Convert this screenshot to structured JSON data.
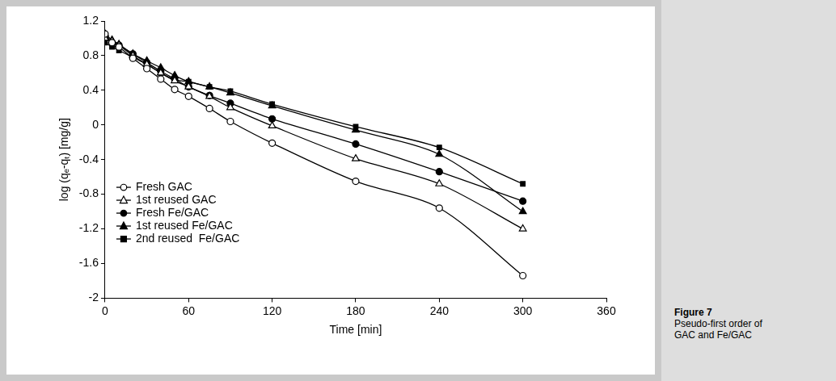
{
  "chart_data": {
    "type": "line",
    "title": "Figure 7",
    "subtitle": "Pseudo-first order of GAC and Fe/GAC",
    "x_label": "Time [min]",
    "y_label": "log (qₑ-qₜ) [mg/g]",
    "x": [
      0,
      5,
      10,
      20,
      30,
      40,
      50,
      60,
      75,
      90,
      120,
      180,
      240,
      300
    ],
    "series": [
      {
        "name": "Fresh GAC",
        "color": "#000000",
        "marker": "circle_open",
        "values": [
          1.05,
          0.95,
          0.9,
          0.77,
          0.65,
          0.53,
          0.41,
          0.33,
          0.19,
          0.04,
          -0.21,
          -0.65,
          -0.96,
          -1.74
        ]
      },
      {
        "name": "1st reused GAC",
        "color": "#000000",
        "marker": "triangle_open",
        "values": [
          1.0,
          0.97,
          0.92,
          0.8,
          0.7,
          0.6,
          0.51,
          0.44,
          0.33,
          0.2,
          -0.01,
          -0.39,
          -0.68,
          -1.2
        ]
      },
      {
        "name": "Fresh Fe/GAC",
        "color": "#000000",
        "marker": "circle",
        "values": [
          1.0,
          0.95,
          0.92,
          0.82,
          0.72,
          0.62,
          0.53,
          0.44,
          0.34,
          0.25,
          0.07,
          -0.22,
          -0.54,
          -0.88
        ]
      },
      {
        "name": "1st reused Fe/GAC",
        "color": "#000000",
        "marker": "triangle",
        "values": [
          1.05,
          0.98,
          0.93,
          0.82,
          0.74,
          0.66,
          0.57,
          0.5,
          0.44,
          0.37,
          0.22,
          -0.06,
          -0.34,
          -1.0
        ]
      },
      {
        "name": "2nd reused  Fe/GAC",
        "color": "#000000",
        "marker": "square",
        "values": [
          0.95,
          0.9,
          0.86,
          0.78,
          0.7,
          0.6,
          0.52,
          0.5,
          0.44,
          0.39,
          0.24,
          -0.02,
          -0.26,
          -0.68
        ]
      }
    ],
    "xlim": [
      0,
      360
    ],
    "xticks": [
      0,
      60,
      120,
      180,
      240,
      300,
      360
    ],
    "ylim": [
      -2,
      1.2
    ],
    "yticks": [
      -2,
      -1.6,
      -1.2,
      -0.8,
      -0.4,
      0,
      0.4,
      0.8,
      1.2
    ],
    "grid": false,
    "legend": "lower left"
  }
}
